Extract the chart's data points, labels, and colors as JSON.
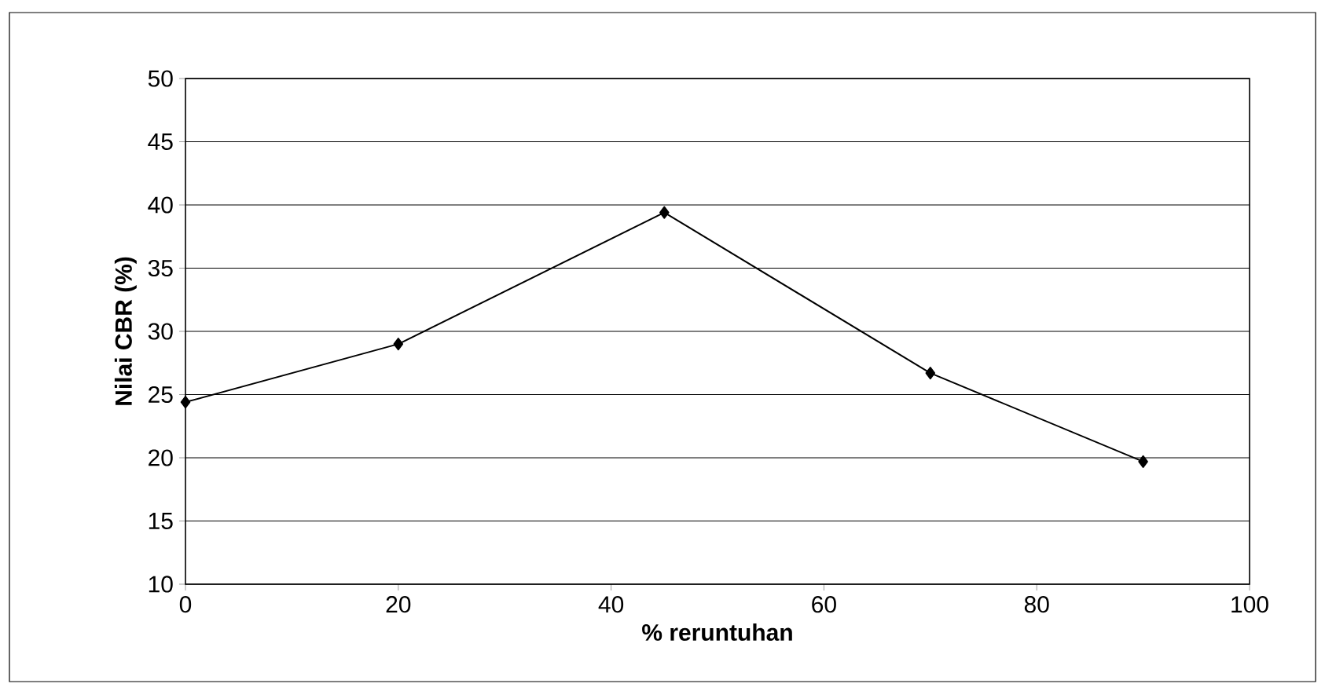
{
  "chart_data": {
    "type": "line",
    "xlabel": "% reruntuhan",
    "ylabel": "Nilai CBR (%)",
    "x": [
      0,
      20,
      45,
      70,
      90
    ],
    "series": [
      {
        "color": "#000000",
        "values": [
          24.4,
          29.0,
          39.4,
          26.7,
          19.7
        ]
      }
    ],
    "xlim": [
      0,
      100
    ],
    "xticks": [
      0,
      20,
      40,
      60,
      80,
      100
    ],
    "ylim": [
      10,
      50
    ],
    "yticks": [
      10,
      15,
      20,
      25,
      30,
      35,
      40,
      45,
      50
    ],
    "grid": "y",
    "marker": "diamond",
    "line_style": "solid"
  }
}
